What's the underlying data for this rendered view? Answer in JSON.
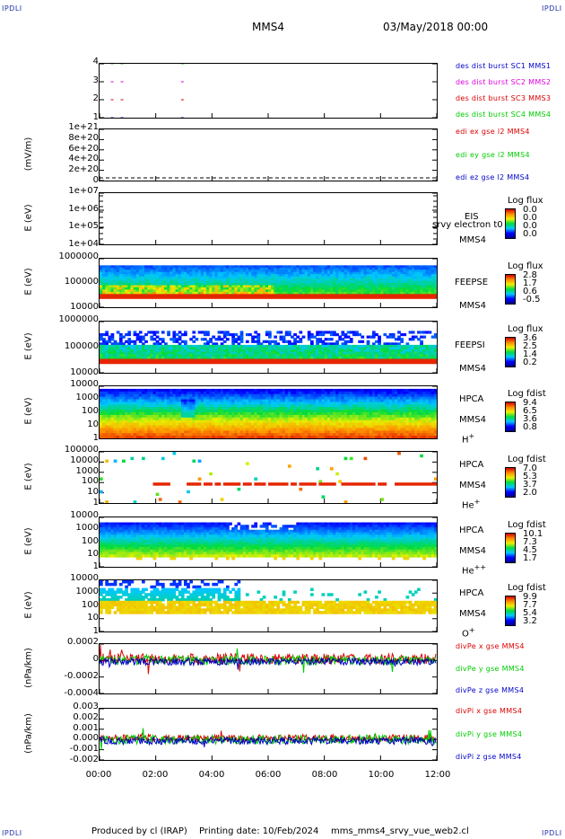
{
  "corner_label": "IPDLI",
  "header": {
    "spacecraft": "MMS4",
    "datetime": "03/May/2018 00:00"
  },
  "footer": {
    "produced_by": "Produced by cl (IRAP)",
    "printing_date": "Printing date: 10/Feb/2024",
    "filename": "mms_mms4_srvy_vue_web2.cl"
  },
  "colors": {
    "red": "#dd0000",
    "green": "#00cc00",
    "blue": "#0000cc",
    "magenta": "#dd00dd"
  },
  "chart_data": {
    "type": "multi-panel",
    "time_axis": {
      "ticks": [
        "00:00",
        "02:00",
        "04:00",
        "06:00",
        "08:00",
        "10:00",
        "12:00"
      ],
      "range": [
        "00:00",
        "12:00"
      ]
    },
    "panels": [
      {
        "id": "burst",
        "ylabel": "",
        "yticks": [
          "4",
          "3",
          "2",
          "1"
        ],
        "legend": [
          {
            "text": "des dist burst SC1 MMS1",
            "color": "#0000cc"
          },
          {
            "text": "des dist burst SC2 MMS2",
            "color": "#dd00dd"
          },
          {
            "text": "des dist burst SC3 MMS3",
            "color": "#dd0000"
          },
          {
            "text": "des dist burst SC4 MMS4",
            "color": "#00cc00"
          }
        ],
        "marks": [
          {
            "sc": 4,
            "times": [
              0.4,
              0.75,
              2.9
            ]
          },
          {
            "sc": 3,
            "times": [
              0.4,
              0.75,
              2.9
            ]
          },
          {
            "sc": 2,
            "times": [
              0.4,
              0.75,
              2.9
            ]
          },
          {
            "sc": 1,
            "times": [
              0.4,
              0.75,
              2.9
            ]
          }
        ]
      },
      {
        "id": "edi",
        "ylabel": "(mV/m)",
        "yticks": [
          "1e+21",
          "8e+20",
          "6e+20",
          "4e+20",
          "2e+20",
          "0"
        ],
        "legend": [
          {
            "text": "edi ex gse l2 MMS4",
            "color": "#dd0000"
          },
          {
            "text": "edi ey gse l2 MMS4",
            "color": "#00cc00"
          },
          {
            "text": "edi ez gse l2 MMS4",
            "color": "#0000cc"
          }
        ]
      },
      {
        "id": "eis",
        "ylabel": "E (eV)",
        "yticks": [
          "1e+07",
          "1e+06",
          "1e+05",
          "1e+04"
        ],
        "side": [
          "EIS",
          "MMS4"
        ],
        "overlay": "srvy electron t0",
        "colorbar": {
          "title": "Log flux",
          "ticks": [
            "0.0",
            "0.0",
            "0.0",
            "0.0"
          ]
        }
      },
      {
        "id": "feepse",
        "ylabel": "E (eV)",
        "yticks": [
          "1000000",
          "100000",
          "10000"
        ],
        "side": [
          "FEEPSE",
          "MMS4"
        ],
        "colorbar": {
          "title": "Log flux",
          "ticks": [
            "2.8",
            "1.7",
            "0.6",
            "-0.5"
          ]
        }
      },
      {
        "id": "feepsi",
        "ylabel": "E (eV)",
        "yticks": [
          "1000000",
          "100000",
          "10000"
        ],
        "side": [
          "FEEPSI",
          "MMS4"
        ],
        "colorbar": {
          "title": "Log flux",
          "ticks": [
            "3.6",
            "2.5",
            "1.4",
            "0.2"
          ]
        }
      },
      {
        "id": "hpca_h",
        "ylabel": "E (eV)",
        "yticks": [
          "10000",
          "1000",
          "100",
          "10",
          "1"
        ],
        "side": [
          "HPCA",
          "MMS4"
        ],
        "species": "H",
        "charge": "+",
        "colorbar": {
          "title": "Log fdist",
          "ticks": [
            "9.4",
            "6.5",
            "3.6",
            "0.8"
          ]
        }
      },
      {
        "id": "hpca_he",
        "ylabel": "E (eV)",
        "yticks": [
          "100000",
          "10000",
          "1000",
          "100",
          "10",
          "1"
        ],
        "side": [
          "HPCA",
          "MMS4"
        ],
        "species": "He",
        "charge": "+",
        "colorbar": {
          "title": "Log fdist",
          "ticks": [
            "7.0",
            "5.3",
            "3.7",
            "2.0"
          ]
        }
      },
      {
        "id": "hpca_he2",
        "ylabel": "E (eV)",
        "yticks": [
          "10000",
          "1000",
          "100",
          "10",
          "1"
        ],
        "side": [
          "HPCA",
          "MMS4"
        ],
        "species": "He",
        "charge": "++",
        "colorbar": {
          "title": "Log fdist",
          "ticks": [
            "10.1",
            "7.3",
            "4.5",
            "1.7"
          ]
        }
      },
      {
        "id": "hpca_o",
        "ylabel": "E (eV)",
        "yticks": [
          "10000",
          "1000",
          "100",
          "10",
          "1"
        ],
        "side": [
          "HPCA",
          "MMS4"
        ],
        "species": "O",
        "charge": "+",
        "colorbar": {
          "title": "Log fdist",
          "ticks": [
            "9.9",
            "7.7",
            "5.4",
            "3.2"
          ]
        }
      },
      {
        "id": "divpe",
        "ylabel": "(nPa/km)",
        "yticks": [
          "0.0002",
          "0",
          "-0.0002",
          "-0.0004"
        ],
        "legend": [
          {
            "text": "divPe x gse MMS4",
            "color": "#dd0000"
          },
          {
            "text": "divPe y gse MMS4",
            "color": "#00cc00"
          },
          {
            "text": "divPe z gse MMS4",
            "color": "#0000cc"
          }
        ]
      },
      {
        "id": "divpi",
        "ylabel": "(nPa/km)",
        "yticks": [
          "0.003",
          "0.002",
          "0.001",
          "0.000",
          "-0.001",
          "-0.002"
        ],
        "legend": [
          {
            "text": "divPi x gse MMS4",
            "color": "#dd0000"
          },
          {
            "text": "divPi y gse MMS4",
            "color": "#00cc00"
          },
          {
            "text": "divPi z gse MMS4",
            "color": "#0000cc"
          }
        ]
      }
    ]
  }
}
